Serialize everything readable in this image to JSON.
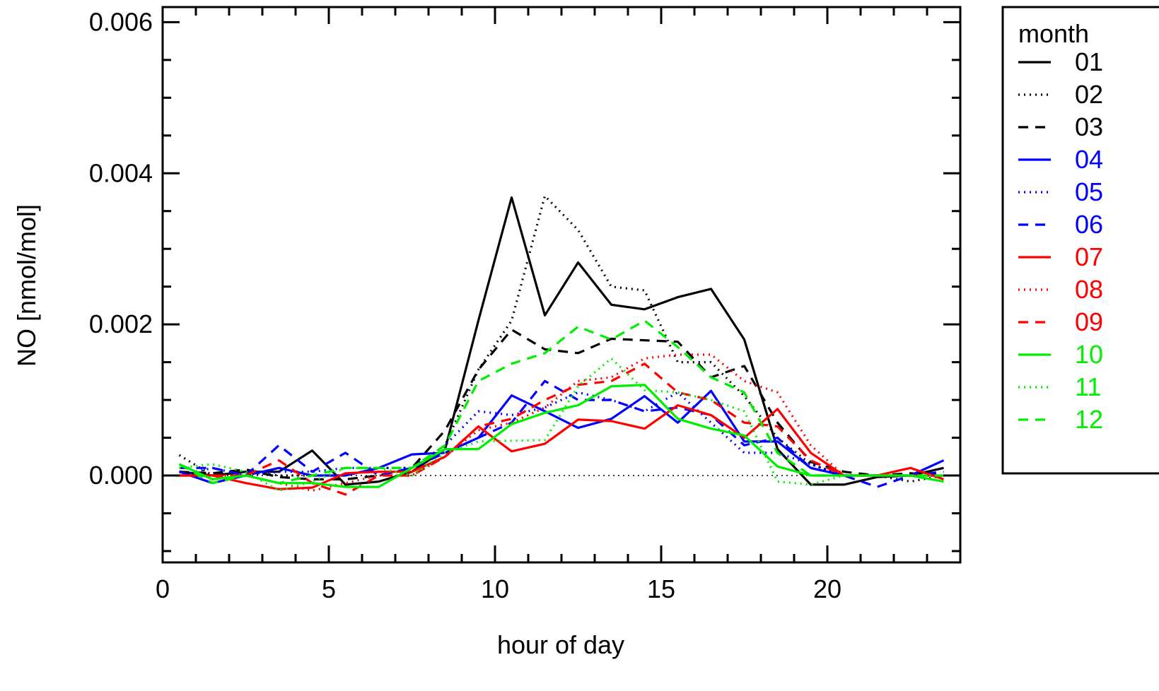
{
  "chart_data": {
    "type": "line",
    "xlabel": "hour of day",
    "ylabel": "NO [nmol/mol]",
    "xlim": [
      0,
      24
    ],
    "ylim": [
      -0.00115,
      0.0062
    ],
    "x_ticks": [
      0,
      5,
      10,
      15,
      20
    ],
    "x_tick_labels": [
      "0",
      "5",
      "10",
      "15",
      "20"
    ],
    "y_ticks": [
      0.0,
      0.002,
      0.004,
      0.006
    ],
    "y_tick_labels": [
      "0.000",
      "0.002",
      "0.004",
      "0.006"
    ],
    "zero_reference_line": true,
    "grid": false,
    "legend": {
      "title": "month",
      "placement": "right"
    },
    "x": [
      0.5,
      1.5,
      2.5,
      3.5,
      4.5,
      5.5,
      6.5,
      7.5,
      8.5,
      9.5,
      10.5,
      11.5,
      12.5,
      13.5,
      14.5,
      15.5,
      16.5,
      17.5,
      18.5,
      19.5,
      20.5,
      21.5,
      22.5,
      23.5
    ],
    "series": [
      {
        "name": "01",
        "color": "#000000",
        "dash": "solid",
        "values": [
          5e-05,
          0.0,
          5e-05,
          5e-05,
          0.00033,
          -0.00012,
          -8e-05,
          5e-05,
          0.00035,
          0.00205,
          0.00368,
          0.00212,
          0.00282,
          0.00226,
          0.0022,
          0.00236,
          0.00247,
          0.0018,
          0.00035,
          -0.00012,
          -0.00012,
          -2e-05,
          0.0,
          0.0001
        ]
      },
      {
        "name": "02",
        "color": "#000000",
        "dash": "dotted",
        "values": [
          0.00027,
          0.0,
          5e-05,
          0.0,
          0.0,
          0.0,
          0.0001,
          0.0001,
          0.0004,
          0.0014,
          0.00205,
          0.0037,
          0.00325,
          0.0025,
          0.00245,
          0.0015,
          0.0015,
          0.00105,
          0.0005,
          0.00015,
          0.0,
          0.0,
          -8e-05,
          0.0
        ]
      },
      {
        "name": "03",
        "color": "#000000",
        "dash": "dashed",
        "values": [
          5e-05,
          3e-05,
          8e-05,
          -2e-05,
          -5e-05,
          -5e-05,
          0.0,
          0.0001,
          0.0006,
          0.0014,
          0.00193,
          0.00167,
          0.00162,
          0.00181,
          0.00179,
          0.00177,
          0.0013,
          0.00145,
          0.0007,
          0.00018,
          5e-05,
          0.0,
          3e-05,
          0.0
        ]
      },
      {
        "name": "04",
        "color": "#0000ff",
        "dash": "solid",
        "values": [
          5e-05,
          -0.0001,
          0.0,
          0.0001,
          0.0,
          0.0,
          0.0001,
          0.00028,
          0.0003,
          0.0005,
          0.00106,
          0.00085,
          0.00063,
          0.00075,
          0.00105,
          0.0007,
          0.00112,
          0.00045,
          0.00045,
          0.0001,
          0.0,
          0.0,
          0.0,
          0.0002
        ]
      },
      {
        "name": "05",
        "color": "#0000ff",
        "dash": "dotted",
        "values": [
          0.0,
          0.0001,
          0.0,
          5e-05,
          5e-05,
          0.0001,
          0.0001,
          0.0001,
          0.0004,
          0.00085,
          0.0008,
          0.0009,
          0.0011,
          0.001,
          0.00085,
          0.0011,
          0.0007,
          0.0003,
          0.0003,
          0.00015,
          0.0,
          0.0,
          0.0,
          0.0
        ]
      },
      {
        "name": "06",
        "color": "#0000ff",
        "dash": "dashed",
        "values": [
          0.0001,
          0.0001,
          0.0,
          0.0004,
          5e-05,
          0.0003,
          0.0,
          0.0001,
          0.0003,
          0.0005,
          0.0007,
          0.00125,
          0.001,
          0.001,
          0.00085,
          0.0009,
          0.0008,
          0.0004,
          0.0005,
          0.0001,
          0.0,
          -0.00015,
          0.0,
          5e-05
        ]
      },
      {
        "name": "07",
        "color": "#ff0000",
        "dash": "solid",
        "values": [
          0.0,
          0.0,
          -0.0001,
          -0.00018,
          -0.00016,
          3e-05,
          5e-05,
          5e-05,
          0.00025,
          0.00065,
          0.00032,
          0.00042,
          0.00074,
          0.00072,
          0.00062,
          0.00093,
          0.0008,
          0.0005,
          0.00088,
          0.0003,
          0.0,
          0.0,
          0.0001,
          -5e-05
        ]
      },
      {
        "name": "08",
        "color": "#ff0000",
        "dash": "dotted",
        "values": [
          0.0,
          0.0,
          0.0,
          -0.0001,
          -0.0002,
          -0.0001,
          0.0,
          0.0,
          0.00025,
          0.0006,
          0.0007,
          0.0009,
          0.00125,
          0.0013,
          0.00155,
          0.0016,
          0.0016,
          0.00125,
          0.0011,
          0.0004,
          0.0,
          0.0,
          0.0,
          0.0
        ]
      },
      {
        "name": "09",
        "color": "#ff0000",
        "dash": "dashed",
        "values": [
          0.0,
          0.0,
          0.0,
          0.0002,
          -0.0001,
          -0.00025,
          0.0,
          0.0,
          0.00025,
          0.00065,
          0.00075,
          0.001,
          0.0012,
          0.00125,
          0.00148,
          0.0011,
          0.001,
          0.0007,
          0.00065,
          0.0002,
          0.0,
          0.0,
          0.0,
          0.0
        ]
      },
      {
        "name": "10",
        "color": "#00ee00",
        "dash": "solid",
        "values": [
          0.00015,
          -5e-05,
          0.0,
          -0.0001,
          -0.0001,
          -0.00015,
          -0.00015,
          0.0001,
          0.00035,
          0.00035,
          0.00068,
          0.00083,
          0.00093,
          0.00118,
          0.0012,
          0.00075,
          0.00062,
          0.00053,
          0.00012,
          0.0,
          0.0,
          0.0,
          0.0,
          -8e-05
        ]
      },
      {
        "name": "11",
        "color": "#00ee00",
        "dash": "dotted",
        "values": [
          0.0001,
          0.00015,
          5e-05,
          -0.0002,
          -8e-05,
          0.0001,
          0.0001,
          0.0,
          0.0003,
          0.00045,
          0.00046,
          0.00047,
          0.00118,
          0.00155,
          0.00113,
          0.0011,
          0.001,
          0.00085,
          -8e-05,
          -0.00012,
          0.0,
          0.0,
          0.0,
          0.0
        ]
      },
      {
        "name": "12",
        "color": "#00ee00",
        "dash": "dashed",
        "values": [
          0.00015,
          -0.0001,
          0.0,
          -0.0001,
          0.0,
          0.0001,
          0.0001,
          0.0001,
          0.0004,
          0.00125,
          0.00148,
          0.00162,
          0.00197,
          0.0018,
          0.00205,
          0.0017,
          0.0013,
          0.0011,
          0.0003,
          0.0,
          0.0,
          0.0,
          0.0,
          0.0
        ]
      }
    ]
  }
}
